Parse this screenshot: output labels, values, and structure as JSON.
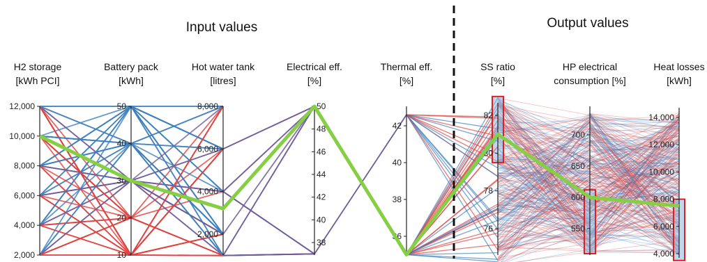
{
  "chart_data": {
    "type": "parallel-coordinates",
    "section_titles": {
      "input": "Input values",
      "output": "Output values"
    },
    "colors": {
      "red": "#e0413f",
      "blue": "#3f7fbe",
      "purple": "#6e5c9a",
      "highlight": "#86cf45",
      "selection_fill": "#8fb4de",
      "selection_stroke": "#e02020",
      "divider": "#111111"
    },
    "axes": [
      {
        "id": "h2",
        "title": [
          "H2 storage",
          "[kWh PCI]"
        ],
        "range": [
          2000,
          12000
        ],
        "ticks": [
          "2,000",
          "4,000",
          "6,000",
          "8,000",
          "10,000",
          "12,000"
        ],
        "tick_values": [
          2000,
          4000,
          6000,
          8000,
          10000,
          12000
        ],
        "label_side": "left"
      },
      {
        "id": "battery",
        "title": [
          "Battery pack",
          "[kWh]"
        ],
        "range": [
          10,
          50
        ],
        "ticks": [
          "10",
          "20",
          "30",
          "40",
          "50"
        ],
        "tick_values": [
          10,
          20,
          30,
          40,
          50
        ],
        "label_side": "left"
      },
      {
        "id": "hotwater",
        "title": [
          "Hot water tank",
          "[litres]"
        ],
        "range": [
          0,
          8000
        ],
        "ticks": [
          "2,000",
          "4,000",
          "6,000",
          "8,000"
        ],
        "tick_values": [
          2000,
          4000,
          6000,
          8000
        ],
        "label_side": "left"
      },
      {
        "id": "elec",
        "title": [
          "Electrical eff.",
          "[%]"
        ],
        "range": [
          37,
          50
        ],
        "ticks": [
          "38",
          "40",
          "42",
          "44",
          "46",
          "48",
          "50"
        ],
        "tick_values": [
          38,
          40,
          42,
          44,
          46,
          48,
          50
        ],
        "label_side": "right"
      },
      {
        "id": "therm",
        "title": [
          "Thermal eff.",
          "[%]"
        ],
        "range": [
          35,
          43
        ],
        "ticks": [
          "36",
          "38",
          "40",
          "42"
        ],
        "tick_values": [
          36,
          38,
          40,
          42
        ],
        "label_side": "left"
      },
      {
        "id": "ss",
        "title": [
          "SS ratio",
          "[%]"
        ],
        "range": [
          74,
          83
        ],
        "ticks": [
          "76",
          "78",
          "80",
          "82"
        ],
        "tick_values": [
          76,
          78,
          80,
          82
        ],
        "label_side": "left",
        "selection": [
          79.5,
          83
        ]
      },
      {
        "id": "hp",
        "title": [
          "HP electrical",
          "consumption [%]"
        ],
        "range": [
          510,
          735
        ],
        "ticks": [
          "550",
          "600",
          "650",
          "700"
        ],
        "tick_values": [
          550,
          600,
          650,
          700
        ],
        "label_side": "left",
        "selection": [
          510,
          612
        ]
      },
      {
        "id": "heat",
        "title": [
          "Heat losses",
          "[kWh]"
        ],
        "range": [
          3500,
          14500
        ],
        "ticks": [
          "4,000",
          "6,000",
          "8,000",
          "10,000",
          "12,000",
          "14,000"
        ],
        "tick_values": [
          4000,
          6000,
          8000,
          10000,
          12000,
          14000
        ],
        "label_side": "left",
        "selection": [
          3500,
          8000
        ]
      }
    ],
    "highlight": {
      "values": [
        10000,
        30,
        3200,
        50,
        35,
        81,
        600,
        7500
      ],
      "color": "#86cf45"
    }
  }
}
